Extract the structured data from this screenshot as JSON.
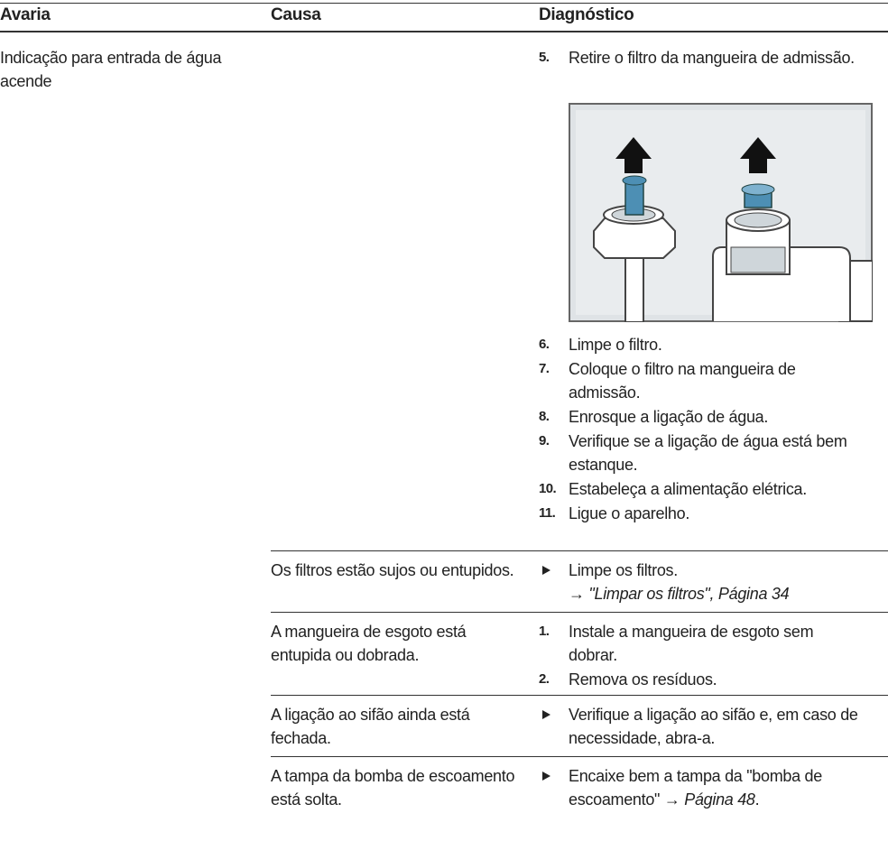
{
  "table": {
    "header": [
      "Avaria",
      "Causa",
      "Diagnóstico"
    ],
    "rows": [
      {
        "fault": "Indicação para entrada de água acende",
        "steps_before": [
          {
            "number": "5.",
            "text": "Retire o filtro da mangueira de admissão."
          }
        ],
        "steps_after": [
          {
            "number": "6.",
            "text": "Limpe o filtro."
          },
          {
            "number": "7.",
            "text": "Coloque o filtro na mangueira de admissão."
          },
          {
            "number": "8.",
            "text": "Enrosque a ligação de água."
          },
          {
            "number": "9.",
            "text": "Verifique se a ligação de água está bem estanque."
          },
          {
            "number": "10.",
            "text": "Estabeleça a alimentação elétrica."
          },
          {
            "number": "11.",
            "text": "Ligue o aparelho."
          }
        ]
      },
      {
        "cause": "Os filtros estão sujos ou entupidos.",
        "action": {
          "text": "Limpe os filtros.",
          "arrow": "→",
          "reference": "\"Limpar os filtros\", Página 34"
        }
      },
      {
        "cause": "A mangueira de esgoto está entupida ou dobrada.",
        "steps": [
          {
            "number": "1.",
            "text": "Instale a mangueira de esgoto sem dobrar."
          },
          {
            "number": "2.",
            "text": "Remova os resíduos."
          }
        ]
      },
      {
        "cause": "A ligação ao sifão ainda está fechada.",
        "action": {
          "text": "Verifique a ligação ao sifão e, em caso de necessidade, abra-a."
        }
      },
      {
        "cause": "A tampa da bomba de escoamento está solta.",
        "action": {
          "text": "Encaixe bem a tampa da \"bomba de escoamento\"",
          "arrow": "→",
          "reference": "Página 48",
          "end": "."
        }
      }
    ]
  }
}
